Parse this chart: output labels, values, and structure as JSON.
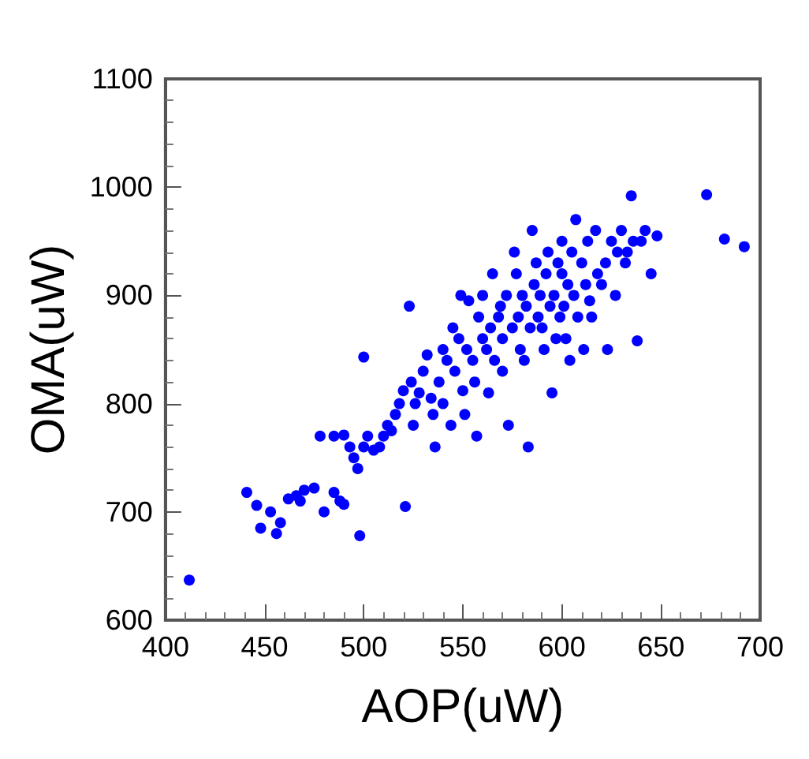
{
  "chart_data": {
    "type": "scatter",
    "xlabel": "AOP(uW)",
    "ylabel": "OMA(uW)",
    "xlim": [
      400,
      700
    ],
    "xticks": [
      400,
      450,
      500,
      550,
      600,
      650,
      700
    ],
    "ylim": [
      600,
      1100
    ],
    "yticks": [
      600,
      700,
      800,
      900,
      1000,
      1100
    ],
    "marker": "circle",
    "series": [
      {
        "color": "#0000ff",
        "x": [
          412,
          441,
          446,
          448,
          453,
          456,
          458,
          462,
          466,
          468,
          470,
          475,
          480,
          485,
          488,
          490,
          478,
          485,
          490,
          493,
          495,
          497,
          498,
          500,
          500,
          502,
          505,
          508,
          510,
          512,
          514,
          516,
          518,
          520,
          521,
          523,
          524,
          525,
          526,
          528,
          530,
          532,
          534,
          535,
          536,
          538,
          540,
          540,
          542,
          544,
          545,
          546,
          548,
          549,
          550,
          551,
          552,
          553,
          555,
          556,
          557,
          558,
          560,
          560,
          562,
          563,
          564,
          565,
          566,
          568,
          569,
          570,
          570,
          572,
          573,
          575,
          576,
          577,
          578,
          579,
          580,
          581,
          582,
          583,
          584,
          585,
          586,
          587,
          588,
          589,
          590,
          591,
          592,
          593,
          594,
          595,
          596,
          597,
          598,
          599,
          600,
          600,
          601,
          602,
          603,
          604,
          605,
          606,
          607,
          608,
          610,
          611,
          612,
          613,
          614,
          615,
          617,
          618,
          620,
          622,
          623,
          625,
          627,
          628,
          630,
          632,
          633,
          635,
          636,
          638,
          640,
          642,
          645,
          648,
          673,
          682,
          692
        ],
        "values": [
          637,
          718,
          706,
          685,
          700,
          680,
          690,
          712,
          715,
          710,
          720,
          722,
          700,
          718,
          710,
          707,
          770,
          770,
          771,
          760,
          750,
          740,
          678,
          843,
          760,
          770,
          757,
          760,
          770,
          780,
          775,
          790,
          800,
          812,
          705,
          890,
          820,
          780,
          800,
          810,
          830,
          845,
          805,
          790,
          760,
          820,
          850,
          800,
          840,
          780,
          870,
          830,
          860,
          900,
          812,
          790,
          850,
          895,
          840,
          820,
          770,
          880,
          900,
          860,
          850,
          810,
          870,
          920,
          840,
          880,
          890,
          860,
          830,
          900,
          780,
          870,
          940,
          920,
          880,
          850,
          900,
          840,
          890,
          760,
          870,
          960,
          910,
          930,
          880,
          900,
          870,
          850,
          920,
          940,
          890,
          810,
          900,
          860,
          930,
          880,
          950,
          920,
          890,
          860,
          910,
          840,
          940,
          900,
          970,
          880,
          930,
          850,
          910,
          950,
          895,
          880,
          960,
          920,
          910,
          930,
          850,
          950,
          900,
          940,
          960,
          930,
          940,
          992,
          950,
          858,
          950,
          960,
          920,
          955,
          993,
          952,
          945
        ]
      }
    ]
  }
}
